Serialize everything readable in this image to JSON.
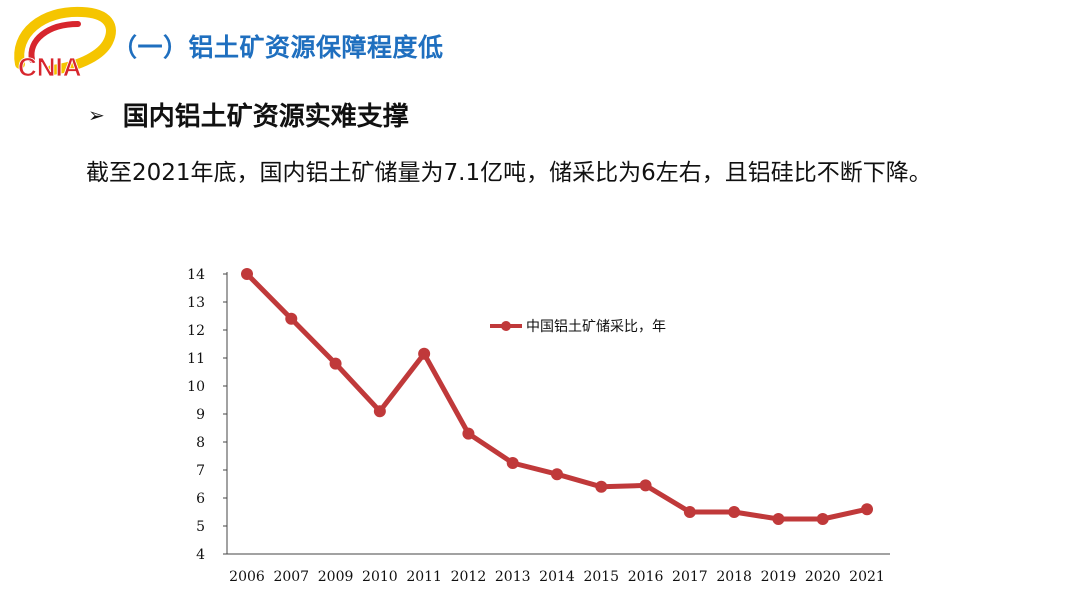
{
  "logo": {
    "text": "CNIA"
  },
  "header": {
    "section_title": "（一）铝土矿资源保障程度低"
  },
  "subheading": {
    "bullet": "➢",
    "text": "国内铝土矿资源实难支撑"
  },
  "body": {
    "text": "截至2021年底，国内铝土矿储量为7.1亿吨，储采比为6左右，且铝硅比不断下降。"
  },
  "colors": {
    "accent": "#1f6fbf",
    "series": "#c0393a",
    "logo_red": "#d7262d",
    "logo_gold": "#f5c500"
  },
  "chart_data": {
    "type": "line",
    "categories": [
      "2006",
      "2007",
      "2009",
      "2010",
      "2011",
      "2012",
      "2013",
      "2014",
      "2015",
      "2016",
      "2017",
      "2018",
      "2019",
      "2020",
      "2021"
    ],
    "series": [
      {
        "name": "中国铝土矿储采比，年",
        "values": [
          14.0,
          12.4,
          10.8,
          9.1,
          11.15,
          8.3,
          7.25,
          6.85,
          6.4,
          6.45,
          5.5,
          5.5,
          5.25,
          5.25,
          5.6
        ]
      }
    ],
    "ylim": [
      4,
      14
    ],
    "yticks": [
      "4",
      "5",
      "6",
      "7",
      "8",
      "9",
      "10",
      "11",
      "12",
      "13",
      "14"
    ],
    "grid": false,
    "legend_position": "top-right"
  }
}
